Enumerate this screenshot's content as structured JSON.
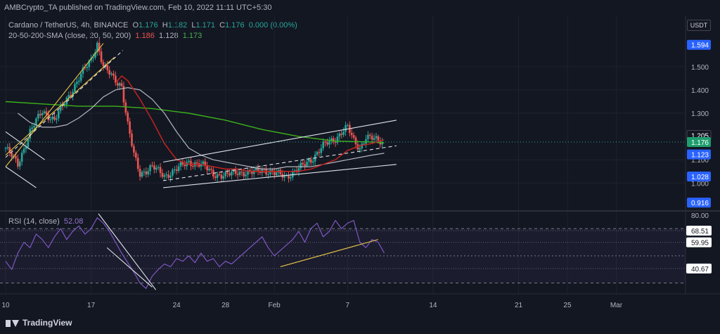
{
  "header": {
    "publisher": "AMBCrypto_TA published on TradingView.com, Feb 10, 2022 11:11 UTC+5:30",
    "currency": "USDT"
  },
  "legend": {
    "symbol": "Cardano / TetherUS, 4h, BINANCE",
    "open_label": "O",
    "open": "1.176",
    "high_label": "H",
    "high": "1.182",
    "low_label": "L",
    "low": "1.171",
    "close_label": "C",
    "close": "1.176",
    "change": "0.000 (0.00%)",
    "sma_label": "20-50-200-SMA (close, 20, 50, 200)",
    "sma20": "1.186",
    "sma50": "1.128",
    "sma200": "1.173",
    "rsi_label": "RSI (14, close)",
    "rsi_value": "52.08"
  },
  "colors": {
    "bg": "#131722",
    "up": "#26a69a",
    "down": "#ef5350",
    "sma20": "#c2231f",
    "sma50": "#b2b5be",
    "sma200": "#3bb21a",
    "rsi": "#7e57c2",
    "channel": "#e0e3eb",
    "yellow": "#e8c547",
    "badge_blue": "#2962ff",
    "badge_green": "#1e9e6e"
  },
  "footer": {
    "brand": "TradingView"
  },
  "chart_data": [
    {
      "type": "candlestick",
      "title": "Cardano / TetherUS, 4h, BINANCE",
      "ylim": [
        0.88,
        1.72
      ],
      "price_ticks": [
        "1.500",
        "1.400",
        "1.300",
        "1.100",
        "1.000"
      ],
      "price_badges": [
        {
          "label": "1.594",
          "value": 1.594,
          "kind": "blue"
        },
        {
          "label": "1.205",
          "value": 1.205,
          "kind": "dark"
        },
        {
          "label": "1.176",
          "value": 1.176,
          "kind": "green"
        },
        {
          "label": "1.123",
          "value": 1.123,
          "kind": "blue"
        },
        {
          "label": "1.028",
          "value": 1.028,
          "kind": "blue"
        },
        {
          "label": "0.916",
          "value": 0.916,
          "kind": "blue"
        }
      ],
      "x_ticks": [
        "10",
        "17",
        "24",
        "28",
        "Feb",
        "7",
        "14",
        "21",
        "25",
        "Mar"
      ],
      "x_tick_days": [
        0,
        7,
        14,
        18,
        22,
        28,
        35,
        42,
        46,
        50
      ],
      "xlim_days": [
        0,
        55.5
      ],
      "price_path_days": [
        0,
        1,
        2,
        3,
        4,
        5,
        6,
        7,
        7.5,
        8,
        8.5,
        9,
        9.5,
        10,
        10.5,
        11,
        12,
        13,
        14,
        15,
        16,
        17,
        18,
        19,
        20,
        21,
        22,
        23,
        24,
        25,
        26,
        27,
        27.5,
        28,
        28.5,
        29,
        29.5,
        30,
        30.5,
        31
      ],
      "price_path": [
        1.15,
        1.08,
        1.22,
        1.31,
        1.27,
        1.36,
        1.45,
        1.53,
        1.6,
        1.5,
        1.47,
        1.44,
        1.42,
        1.25,
        1.12,
        1.04,
        1.07,
        1.03,
        1.06,
        1.09,
        1.08,
        1.04,
        1.03,
        1.05,
        1.04,
        1.06,
        1.04,
        1.03,
        1.06,
        1.1,
        1.16,
        1.19,
        1.22,
        1.24,
        1.18,
        1.15,
        1.2,
        1.19,
        1.18,
        1.176
      ],
      "sma20_days": [
        9,
        9.5,
        10,
        11,
        12,
        13,
        14,
        15,
        16,
        17,
        18,
        19,
        20,
        21,
        22,
        23,
        24,
        25,
        26,
        27,
        28,
        29,
        30,
        31
      ],
      "sma20": [
        1.43,
        1.46,
        1.44,
        1.36,
        1.27,
        1.17,
        1.1,
        1.08,
        1.08,
        1.07,
        1.06,
        1.06,
        1.05,
        1.05,
        1.05,
        1.05,
        1.05,
        1.06,
        1.08,
        1.1,
        1.14,
        1.16,
        1.17,
        1.186
      ],
      "sma50_days": [
        1,
        2,
        3,
        4,
        5,
        6,
        7,
        8,
        9,
        10,
        11,
        12,
        13,
        14,
        15,
        16,
        17,
        18,
        19,
        20,
        21,
        22,
        23,
        24,
        25,
        26,
        27,
        28,
        29,
        30,
        31
      ],
      "sma50": [
        1.3,
        1.26,
        1.24,
        1.24,
        1.25,
        1.28,
        1.32,
        1.37,
        1.4,
        1.41,
        1.4,
        1.36,
        1.3,
        1.22,
        1.15,
        1.12,
        1.1,
        1.09,
        1.08,
        1.07,
        1.06,
        1.06,
        1.07,
        1.07,
        1.07,
        1.08,
        1.09,
        1.1,
        1.11,
        1.12,
        1.128
      ],
      "sma200_days": [
        0,
        3,
        6,
        9,
        12,
        15,
        18,
        21,
        24,
        27,
        30,
        31
      ],
      "sma200": [
        1.35,
        1.34,
        1.33,
        1.33,
        1.32,
        1.3,
        1.27,
        1.23,
        1.2,
        1.18,
        1.176,
        1.173
      ],
      "channels": [
        {
          "color": "yellow",
          "points": [
            [
              0,
              1.07
            ],
            [
              8,
              1.6
            ]
          ]
        },
        {
          "color": "yellow",
          "points": [
            [
              0,
              1.12
            ],
            [
              8.9,
              1.54
            ]
          ]
        },
        {
          "color": "white",
          "points": [
            [
              0,
              1.07
            ],
            [
              2.5,
              0.98
            ]
          ]
        },
        {
          "color": "white",
          "points": [
            [
              0,
              1.22
            ],
            [
              3.2,
              1.1
            ]
          ]
        },
        {
          "color": "white",
          "dashed": true,
          "points": [
            [
              0,
              1.11
            ],
            [
              9.6,
              1.57
            ]
          ]
        },
        {
          "color": "white",
          "points": [
            [
              12.9,
              1.09
            ],
            [
              32,
              1.27
            ]
          ]
        },
        {
          "color": "white",
          "dashed": true,
          "points": [
            [
              12.9,
              1.01
            ],
            [
              32,
              1.16
            ]
          ]
        },
        {
          "color": "white",
          "points": [
            [
              12.9,
              0.98
            ],
            [
              32,
              1.08
            ]
          ]
        }
      ]
    },
    {
      "type": "line",
      "title": "RSI (14, close)",
      "ylim": [
        22,
        83
      ],
      "level_labels": [
        {
          "label": "80.00",
          "value": 80,
          "boxed": false
        },
        {
          "label": "68.51",
          "value": 68.51,
          "boxed": true
        },
        {
          "label": "59.95",
          "value": 59.95,
          "boxed": true
        },
        {
          "label": "40.67",
          "value": 40.67,
          "boxed": true
        }
      ],
      "band": [
        30,
        70
      ],
      "rsi_days": [
        0,
        0.5,
        1,
        1.5,
        2,
        2.5,
        3,
        3.5,
        4,
        4.5,
        5,
        5.5,
        6,
        6.5,
        7,
        7.5,
        8,
        8.5,
        9,
        9.5,
        10,
        10.5,
        11,
        11.5,
        12,
        12.5,
        13,
        13.5,
        14,
        14.5,
        15,
        15.5,
        16,
        16.5,
        17,
        17.5,
        18,
        18.5,
        19,
        19.5,
        20,
        20.5,
        21,
        21.5,
        22,
        22.5,
        23,
        23.5,
        24,
        24.5,
        25,
        25.5,
        26,
        26.5,
        27,
        27.5,
        28,
        28.5,
        29,
        29.5,
        30,
        30.5,
        31
      ],
      "rsi": [
        46,
        40,
        52,
        60,
        56,
        66,
        62,
        56,
        64,
        70,
        62,
        68,
        72,
        66,
        70,
        78,
        74,
        68,
        60,
        52,
        45,
        38,
        30,
        26,
        35,
        40,
        44,
        42,
        48,
        46,
        50,
        45,
        52,
        46,
        48,
        42,
        46,
        44,
        48,
        52,
        56,
        60,
        64,
        56,
        50,
        54,
        58,
        62,
        68,
        60,
        70,
        74,
        64,
        68,
        76,
        70,
        74,
        76,
        60,
        56,
        62,
        60,
        52.08
      ],
      "trendlines": [
        {
          "color": "white",
          "points": [
            [
              7.6,
              81
            ],
            [
              12.3,
              25
            ]
          ]
        },
        {
          "color": "white",
          "points": [
            [
              8.3,
              56
            ],
            [
              12.0,
              27
            ]
          ]
        },
        {
          "color": "yellow",
          "points": [
            [
              22.5,
              42
            ],
            [
              30.5,
              62
            ]
          ]
        }
      ]
    }
  ]
}
